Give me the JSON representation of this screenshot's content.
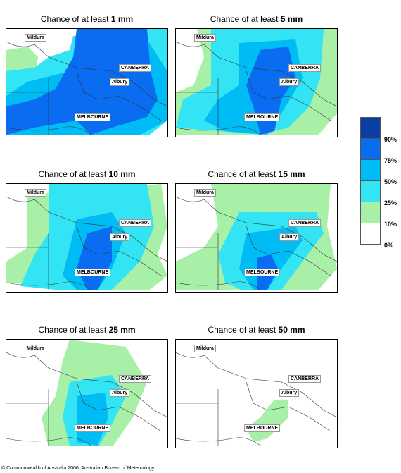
{
  "colors": {
    "c10": "#a8f0a8",
    "c25": "#33e4f4",
    "c50": "#00bcf5",
    "c75": "#0a6cf0",
    "c90": "#0a3ea4",
    "none": "#ffffff"
  },
  "panels": [
    {
      "prefix": "Chance of at least ",
      "amount": "1 mm"
    },
    {
      "prefix": "Chance of at least ",
      "amount": "5 mm"
    },
    {
      "prefix": "Chance of at least ",
      "amount": "10 mm"
    },
    {
      "prefix": "Chance of at least ",
      "amount": "15 mm"
    },
    {
      "prefix": "Chance of at least ",
      "amount": "25 mm"
    },
    {
      "prefix": "Chance of at least ",
      "amount": "50 mm"
    }
  ],
  "places": {
    "mildura": "Mildura",
    "canberra": "CANBERRA",
    "albury": "Albury",
    "melbourne": "MELBOURNE"
  },
  "legend": {
    "labels": [
      "90%",
      "75%",
      "50%",
      "25%",
      "10%",
      "0%"
    ]
  },
  "copyright": "© Commonwealth of Australia 2006, Australian Bureau of Meteorology"
}
